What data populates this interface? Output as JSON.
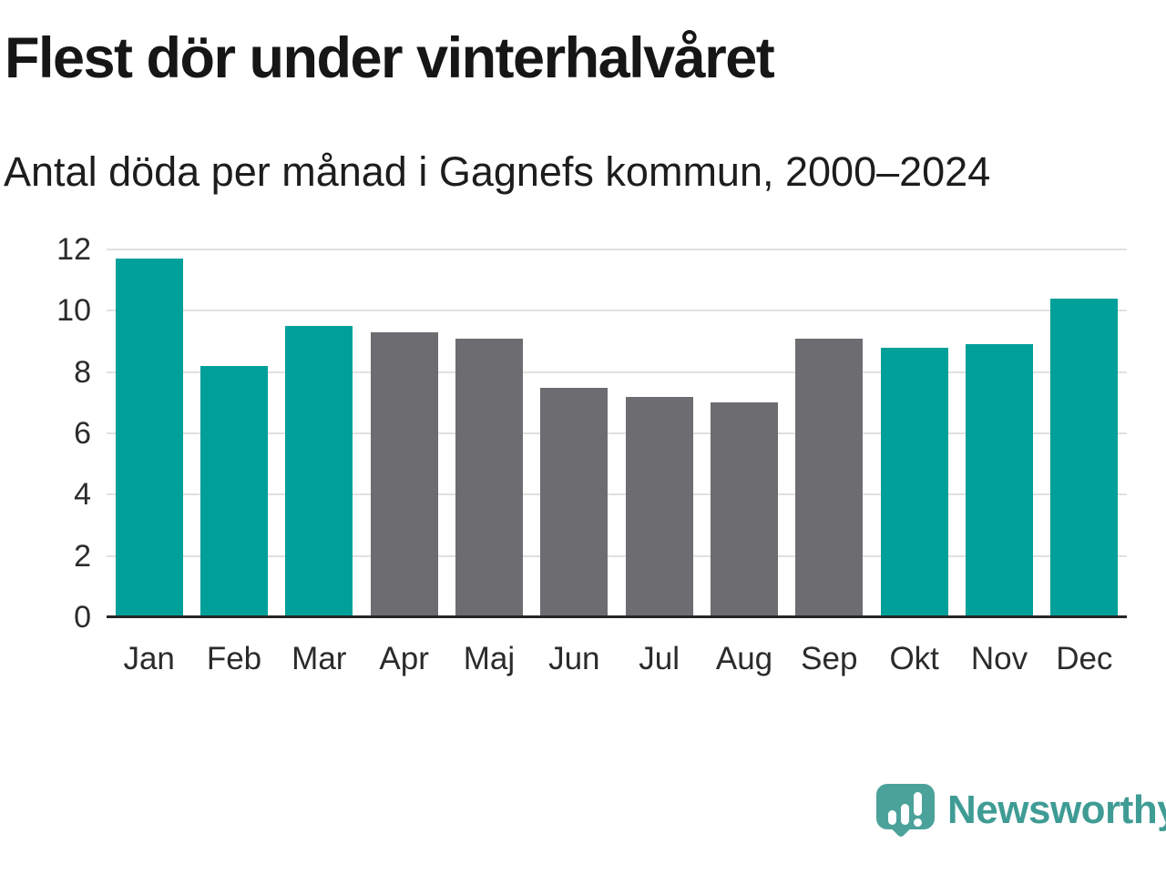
{
  "header": {
    "title": "Flest dör under vinterhalvåret",
    "subtitle": "Antal döda per månad i Gagnefs kommun, 2000–2024"
  },
  "chart_data": {
    "type": "bar",
    "title": "Flest dör under vinterhalvåret",
    "subtitle": "Antal döda per månad i Gagnefs kommun, 2000–2024",
    "categories": [
      "Jan",
      "Feb",
      "Mar",
      "Apr",
      "Maj",
      "Jun",
      "Jul",
      "Aug",
      "Sep",
      "Okt",
      "Nov",
      "Dec"
    ],
    "values": [
      11.7,
      8.2,
      9.5,
      9.3,
      9.1,
      7.5,
      7.2,
      7.0,
      9.1,
      8.8,
      8.9,
      10.4
    ],
    "bar_colors": [
      "#00a09a",
      "#00a09a",
      "#00a09a",
      "#6d6d71",
      "#6d6d71",
      "#6d6d71",
      "#6d6d71",
      "#6d6d71",
      "#6d6d71",
      "#00a09a",
      "#00a09a",
      "#00a09a"
    ],
    "highlight_color": "#00a09a",
    "base_color": "#6d6d71",
    "xlabel": "",
    "ylabel": "",
    "ylim": [
      0,
      12
    ],
    "yticks": [
      0,
      2,
      4,
      6,
      8,
      10,
      12
    ],
    "grid": true,
    "legend": "none",
    "gridline_color": "#e0e0e0",
    "axisline_color": "#262626"
  },
  "branding": {
    "logo_text": "Newsworthy",
    "logo_color": "#3f9c95",
    "logo_icon": "speech-bubble-bar-chart-icon"
  }
}
